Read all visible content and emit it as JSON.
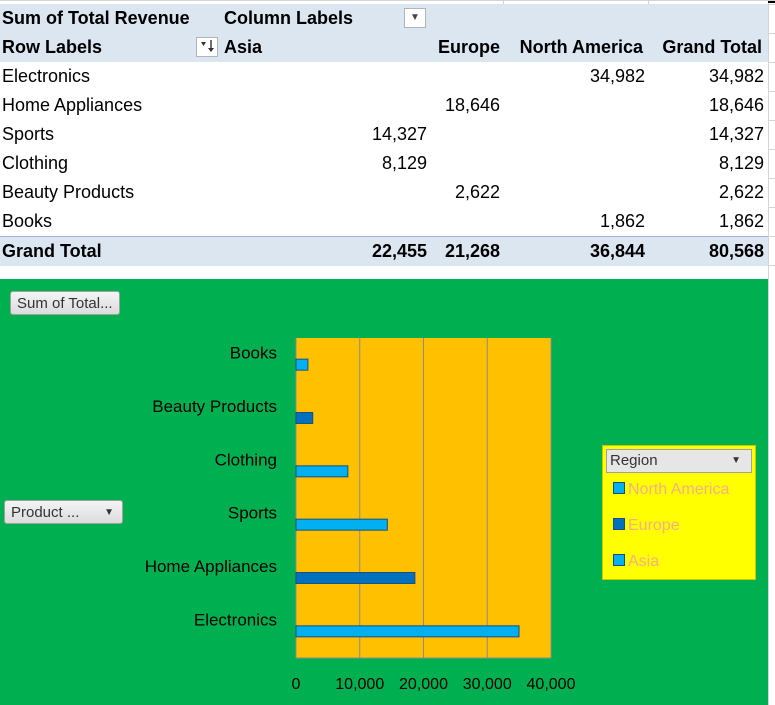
{
  "pivot": {
    "corner_title": "Sum of Total Revenue",
    "column_labels": "Column Labels",
    "row_labels": "Row Labels",
    "col_headers": [
      "Asia",
      "Europe",
      "North America",
      "Grand Total"
    ],
    "rows": [
      {
        "label": "Electronics",
        "asia": "",
        "europe": "",
        "north_america": "34,982",
        "grand_total": "34,982"
      },
      {
        "label": "Home Appliances",
        "asia": "",
        "europe": "18,646",
        "north_america": "",
        "grand_total": "18,646"
      },
      {
        "label": "Sports",
        "asia": "14,327",
        "europe": "",
        "north_america": "",
        "grand_total": "14,327"
      },
      {
        "label": "Clothing",
        "asia": "8,129",
        "europe": "",
        "north_america": "",
        "grand_total": "8,129"
      },
      {
        "label": "Beauty Products",
        "asia": "",
        "europe": "2,622",
        "north_america": "",
        "grand_total": "2,622"
      },
      {
        "label": "Books",
        "asia": "",
        "europe": "",
        "north_america": "1,862",
        "grand_total": "1,862"
      }
    ],
    "total": {
      "label": "Grand Total",
      "asia": "22,455",
      "europe": "21,268",
      "north_america": "36,844",
      "grand_total": "80,568"
    }
  },
  "chart": {
    "value_field_button": "Sum of Total...",
    "axis_field_button": "Product ...",
    "legend_field_button": "Region",
    "colors": {
      "chart_area": "#00b050",
      "plot_area": "#ffc000",
      "north_america": "#00b0f0",
      "europe": "#0070c0",
      "asia": "#00b0f0",
      "legend_bg": "#ffff00",
      "legend_text": "#f4b183"
    }
  },
  "chart_data": {
    "type": "bar",
    "orientation": "horizontal",
    "categories": [
      "Electronics",
      "Home Appliances",
      "Sports",
      "Clothing",
      "Beauty Products",
      "Books"
    ],
    "series": [
      {
        "name": "North America",
        "values": [
          34982,
          null,
          null,
          null,
          null,
          1862
        ]
      },
      {
        "name": "Europe",
        "values": [
          null,
          18646,
          null,
          null,
          2622,
          null
        ]
      },
      {
        "name": "Asia",
        "values": [
          null,
          null,
          14327,
          8129,
          null,
          null
        ]
      }
    ],
    "xlim": [
      0,
      40000
    ],
    "x_ticks": [
      "0",
      "10,000",
      "20,000",
      "30,000",
      "40,000"
    ],
    "grid": true,
    "legend_position": "right"
  }
}
